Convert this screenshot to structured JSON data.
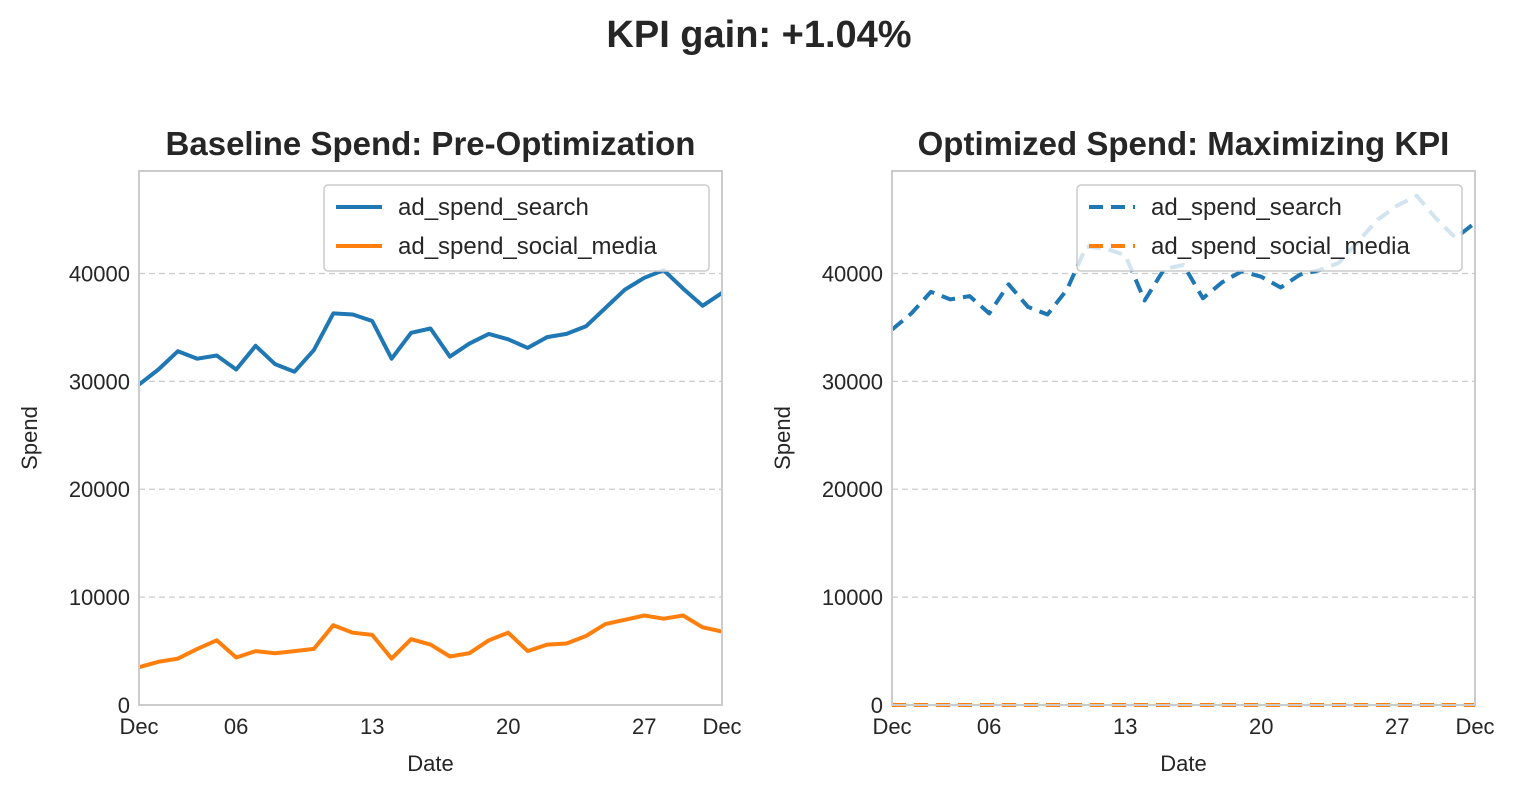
{
  "suptitle": "KPI gain: +1.04%",
  "colors": {
    "search": "#1f77b4",
    "social": "#ff7f0e",
    "grid": "#cccccc",
    "spine": "#cccccc"
  },
  "chart_data": [
    {
      "type": "line",
      "title": "Baseline Spend: Pre-Optimization",
      "xlabel": "Date",
      "ylabel": "Spend",
      "x_tick_labels": [
        "Dec",
        "06",
        "13",
        "20",
        "27",
        "Dec"
      ],
      "y_tick_labels": [
        "0",
        "10000",
        "20000",
        "30000",
        "40000"
      ],
      "ylim": [
        0,
        49500
      ],
      "grid": "y, dashed",
      "legend_position": "upper right",
      "line_style": "solid",
      "x": [
        "2023-12-01",
        "2023-12-02",
        "2023-12-03",
        "2023-12-04",
        "2023-12-05",
        "2023-12-06",
        "2023-12-07",
        "2023-12-08",
        "2023-12-09",
        "2023-12-10",
        "2023-12-11",
        "2023-12-12",
        "2023-12-13",
        "2023-12-14",
        "2023-12-15",
        "2023-12-16",
        "2023-12-17",
        "2023-12-18",
        "2023-12-19",
        "2023-12-20",
        "2023-12-21",
        "2023-12-22",
        "2023-12-23",
        "2023-12-24",
        "2023-12-25",
        "2023-12-26",
        "2023-12-27",
        "2023-12-28",
        "2023-12-29",
        "2023-12-30",
        "2023-12-31"
      ],
      "series": [
        {
          "name": "ad_spend_search",
          "values": [
            29700,
            31100,
            32800,
            32100,
            32400,
            31100,
            33300,
            31600,
            30900,
            32900,
            36300,
            36200,
            35600,
            32100,
            34500,
            34900,
            32300,
            33500,
            34400,
            33900,
            33100,
            34100,
            34400,
            35100,
            36800,
            38500,
            39600,
            40300,
            38600,
            37000,
            38200
          ]
        },
        {
          "name": "ad_spend_social_media",
          "values": [
            3500,
            4000,
            4300,
            5200,
            6000,
            4400,
            5000,
            4800,
            5000,
            5200,
            7400,
            6700,
            6500,
            4300,
            6100,
            5600,
            4500,
            4800,
            6000,
            6700,
            5000,
            5600,
            5700,
            6400,
            7500,
            7900,
            8300,
            8000,
            8300,
            7200,
            6800
          ]
        }
      ]
    },
    {
      "type": "line",
      "title": "Optimized Spend: Maximizing KPI",
      "xlabel": "Date",
      "ylabel": "Spend",
      "x_tick_labels": [
        "Dec",
        "06",
        "13",
        "20",
        "27",
        "Dec"
      ],
      "y_tick_labels": [
        "0",
        "10000",
        "20000",
        "30000",
        "40000"
      ],
      "ylim": [
        0,
        49500
      ],
      "grid": "y, dashed",
      "legend_position": "upper right",
      "line_style": "dashed",
      "x": [
        "2023-12-01",
        "2023-12-02",
        "2023-12-03",
        "2023-12-04",
        "2023-12-05",
        "2023-12-06",
        "2023-12-07",
        "2023-12-08",
        "2023-12-09",
        "2023-12-10",
        "2023-12-11",
        "2023-12-12",
        "2023-12-13",
        "2023-12-14",
        "2023-12-15",
        "2023-12-16",
        "2023-12-17",
        "2023-12-18",
        "2023-12-19",
        "2023-12-20",
        "2023-12-21",
        "2023-12-22",
        "2023-12-23",
        "2023-12-24",
        "2023-12-25",
        "2023-12-26",
        "2023-12-27",
        "2023-12-28",
        "2023-12-29",
        "2023-12-30",
        "2023-12-31"
      ],
      "series": [
        {
          "name": "ad_spend_search",
          "values": [
            34800,
            36300,
            38300,
            37600,
            37900,
            36300,
            39000,
            36900,
            36200,
            38500,
            42500,
            42300,
            41700,
            37500,
            40400,
            40800,
            37700,
            39200,
            40200,
            39700,
            38700,
            39900,
            40300,
            41000,
            43000,
            45000,
            46300,
            47200,
            45100,
            43300,
            44700
          ]
        },
        {
          "name": "ad_spend_social_media",
          "values": [
            0,
            0,
            0,
            0,
            0,
            0,
            0,
            0,
            0,
            0,
            0,
            0,
            0,
            0,
            0,
            0,
            0,
            0,
            0,
            0,
            0,
            0,
            0,
            0,
            0,
            0,
            0,
            0,
            0,
            0,
            0
          ]
        }
      ]
    }
  ]
}
